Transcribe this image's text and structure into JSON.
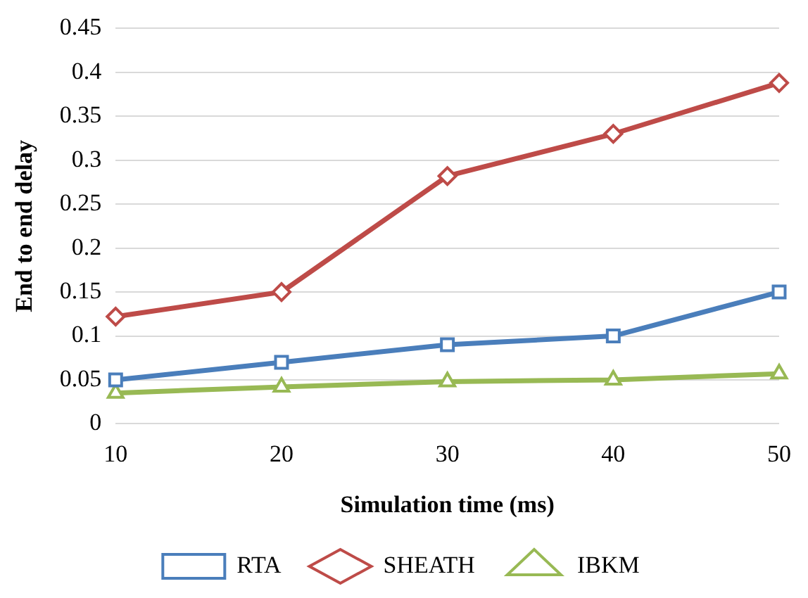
{
  "chart_data": {
    "type": "line",
    "xlabel": "Simulation time (ms)",
    "ylabel": "End to end delay",
    "categories": [
      "10",
      "20",
      "30",
      "40",
      "50"
    ],
    "series": [
      {
        "name": "RTA",
        "color": "#4a7ebb",
        "marker": "square",
        "values": [
          0.05,
          0.07,
          0.09,
          0.1,
          0.15
        ]
      },
      {
        "name": "SHEATH",
        "color": "#be4b48",
        "marker": "diamond",
        "values": [
          0.122,
          0.15,
          0.282,
          0.33,
          0.388
        ]
      },
      {
        "name": "IBKM",
        "color": "#98b954",
        "marker": "triangle",
        "values": [
          0.035,
          0.042,
          0.048,
          0.05,
          0.057
        ]
      }
    ],
    "ylim": [
      0,
      0.45
    ],
    "yticks": [
      0,
      0.05,
      0.1,
      0.15,
      0.2,
      0.25,
      0.3,
      0.35,
      0.4,
      0.45
    ],
    "grid": "y",
    "legend": "bottom"
  }
}
